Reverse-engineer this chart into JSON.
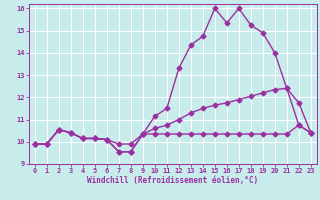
{
  "background_color": "#c8ecec",
  "line_color": "#9b30a0",
  "grid_color": "#ffffff",
  "xlabel": "Windchill (Refroidissement éolien,°C)",
  "xlim": [
    -0.5,
    23.5
  ],
  "ylim": [
    9,
    16.2
  ],
  "xticks": [
    0,
    1,
    2,
    3,
    4,
    5,
    6,
    7,
    8,
    9,
    10,
    11,
    12,
    13,
    14,
    15,
    16,
    17,
    18,
    19,
    20,
    21,
    22,
    23
  ],
  "yticks": [
    9,
    10,
    11,
    12,
    13,
    14,
    15,
    16
  ],
  "line1_x": [
    0,
    1,
    2,
    3,
    4,
    5,
    6,
    7,
    8,
    9,
    10,
    11,
    12,
    13,
    14,
    15,
    16,
    17,
    18,
    19,
    20,
    21,
    22,
    23
  ],
  "line1_y": [
    9.9,
    9.9,
    10.55,
    10.4,
    10.15,
    10.15,
    10.1,
    9.55,
    9.55,
    10.35,
    11.15,
    11.5,
    13.3,
    14.35,
    14.75,
    16.0,
    15.35,
    16.0,
    15.25,
    14.9,
    14.0,
    12.4,
    11.75,
    10.4
  ],
  "line2_x": [
    0,
    1,
    2,
    3,
    4,
    5,
    6,
    7,
    8,
    9,
    10,
    11,
    12,
    13,
    14,
    15,
    16,
    17,
    18,
    19,
    20,
    21,
    22,
    23
  ],
  "line2_y": [
    9.9,
    9.9,
    10.55,
    10.4,
    10.15,
    10.15,
    10.1,
    9.55,
    9.55,
    10.35,
    10.6,
    10.75,
    11.0,
    11.3,
    11.5,
    11.65,
    11.75,
    11.9,
    12.05,
    12.2,
    12.35,
    12.4,
    10.75,
    10.4
  ],
  "line3_x": [
    0,
    1,
    2,
    3,
    4,
    5,
    6,
    7,
    8,
    9,
    10,
    11,
    12,
    13,
    14,
    15,
    16,
    17,
    18,
    19,
    20,
    21,
    22,
    23
  ],
  "line3_y": [
    9.9,
    9.9,
    10.55,
    10.4,
    10.15,
    10.15,
    10.1,
    9.9,
    9.9,
    10.35,
    10.35,
    10.35,
    10.35,
    10.35,
    10.35,
    10.35,
    10.35,
    10.35,
    10.35,
    10.35,
    10.35,
    10.35,
    10.75,
    10.4
  ],
  "marker": "D",
  "markersize": 2.5,
  "linewidth": 1.0
}
